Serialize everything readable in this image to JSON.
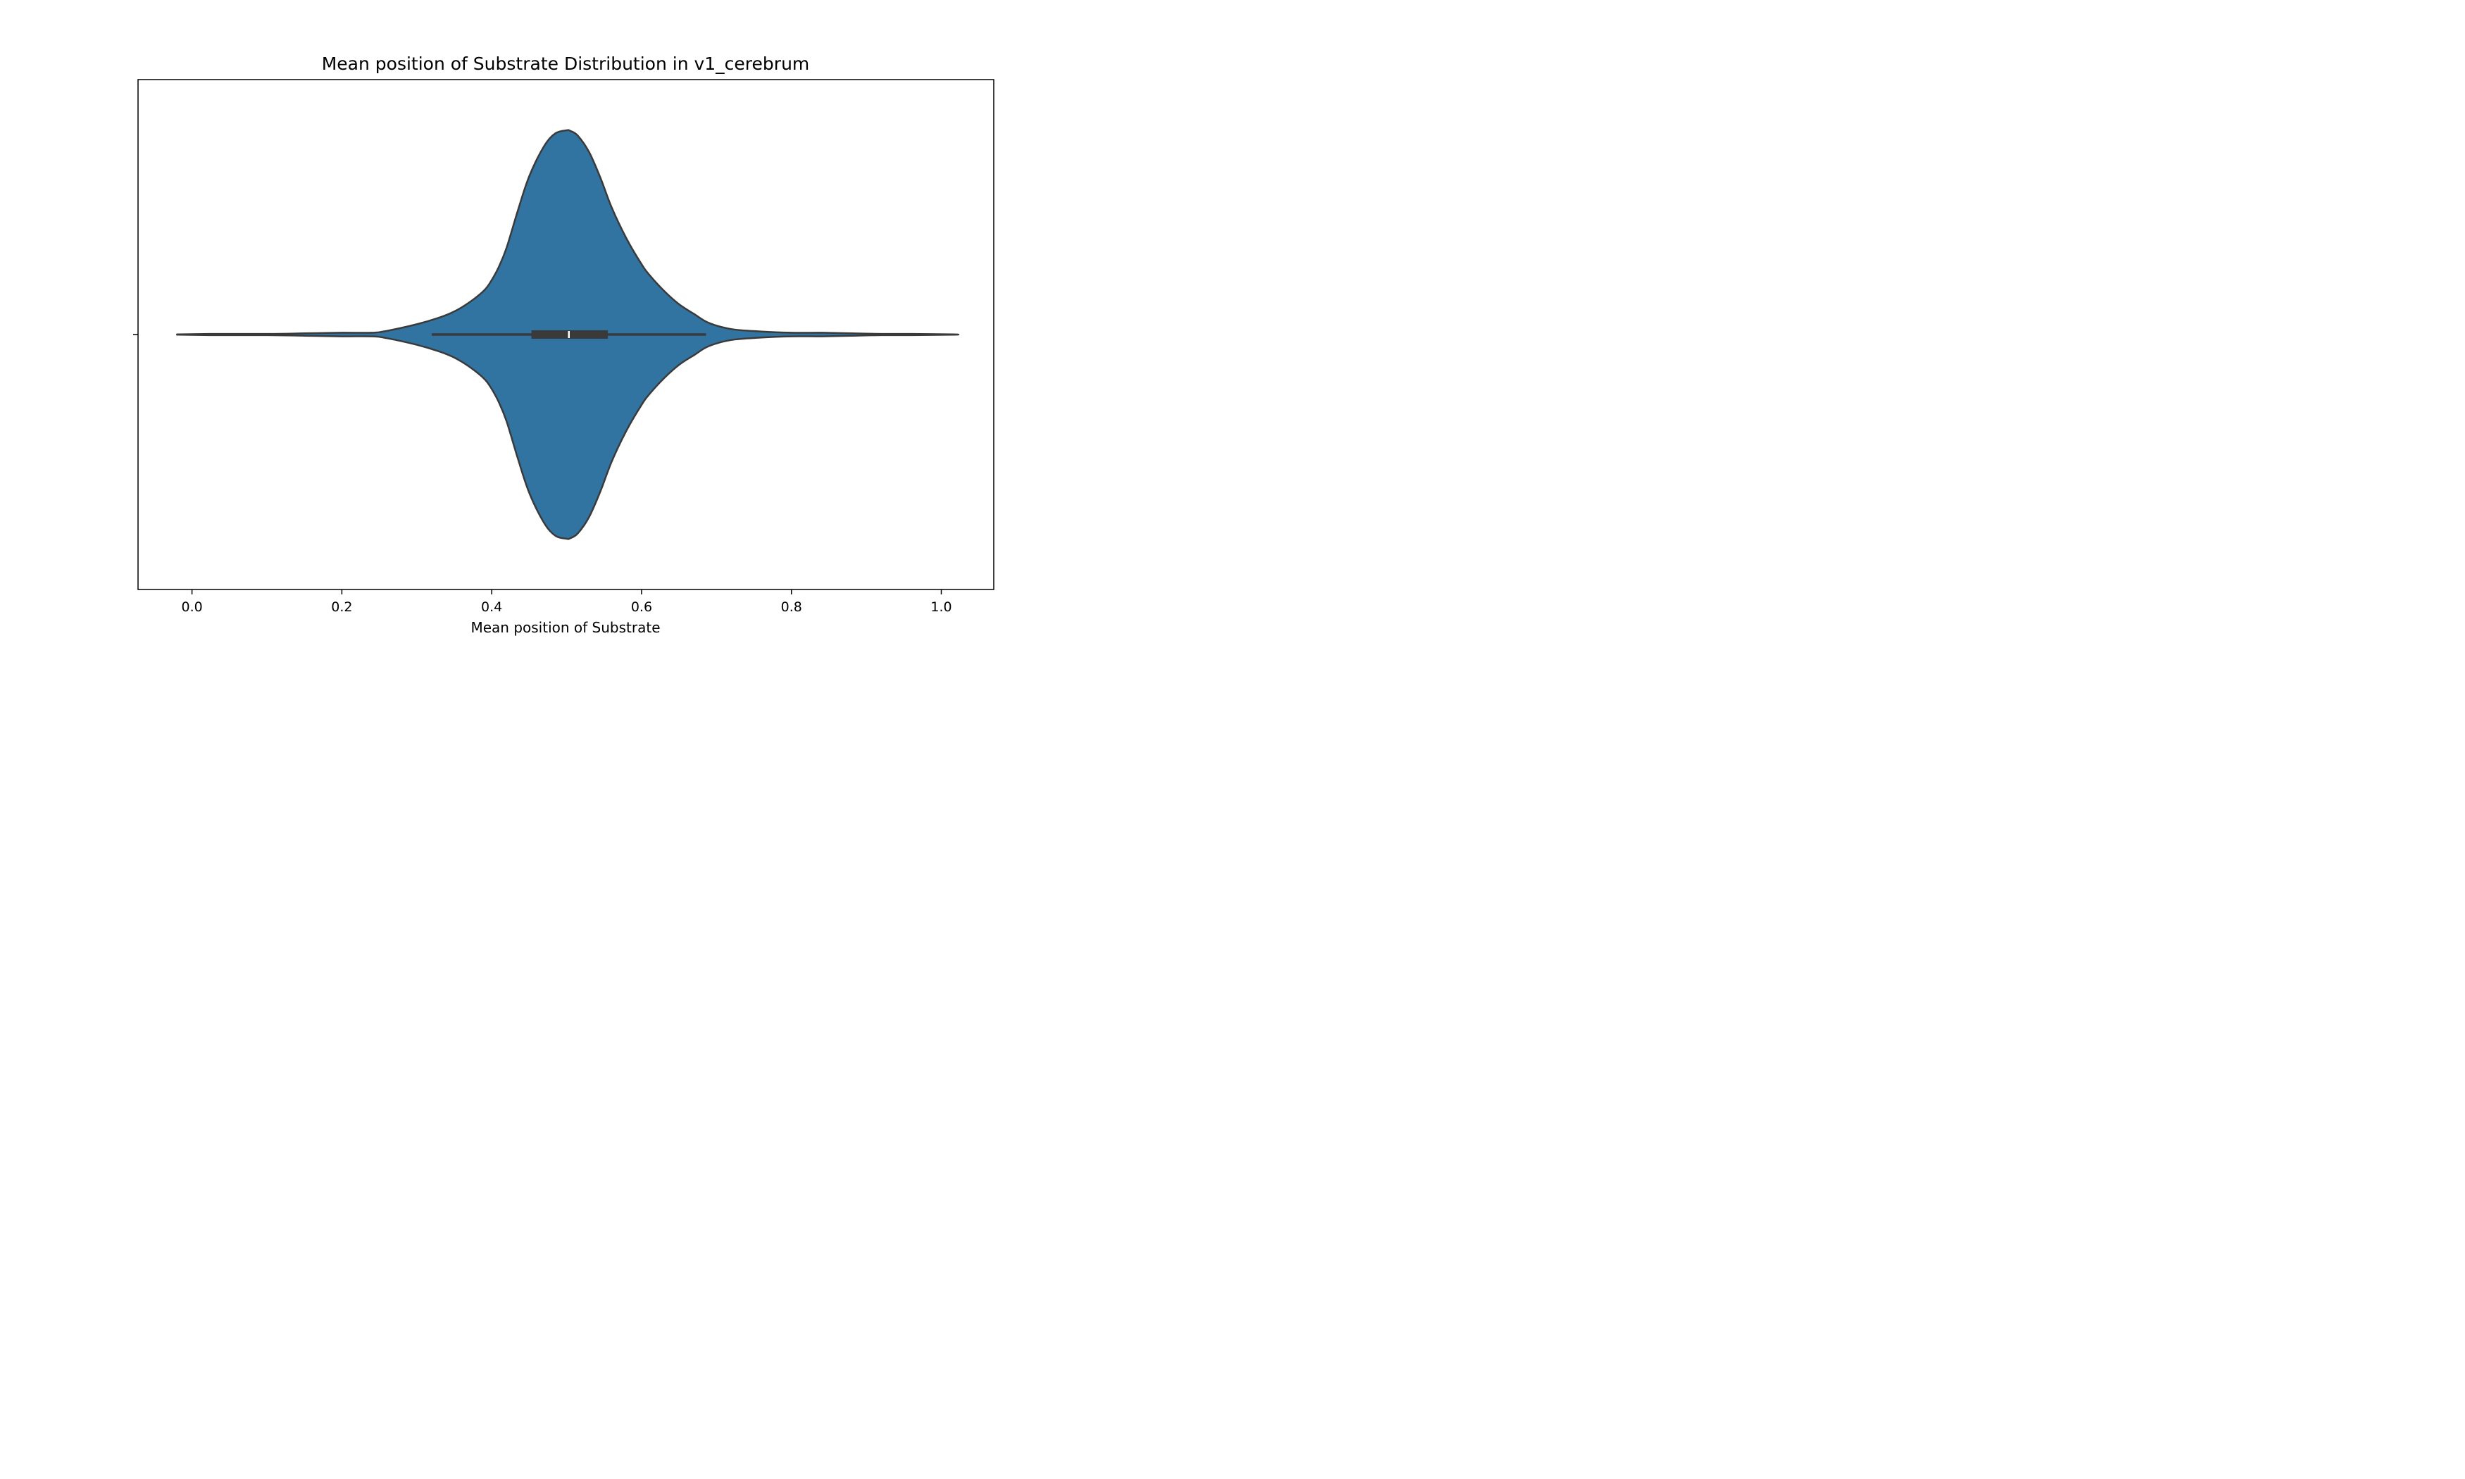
{
  "chart_data": {
    "type": "violin",
    "title": "Mean position of Substrate Distribution in v1_cerebrum",
    "xlabel": "Mean position of Substrate",
    "ylabel": "",
    "xlim": [
      -0.072,
      1.07
    ],
    "xticks": [
      0.0,
      0.2,
      0.4,
      0.6,
      0.8,
      1.0
    ],
    "xtick_labels": [
      "0.0",
      "0.2",
      "0.4",
      "0.6",
      "0.8",
      "1.0"
    ],
    "grid": false,
    "legend": "none",
    "fill_color": "#3274a1",
    "edge_color": "#3a3a3a",
    "density_profile": {
      "x": [
        -0.02,
        0.03,
        0.1,
        0.15,
        0.2,
        0.24,
        0.26,
        0.3,
        0.33,
        0.35,
        0.37,
        0.39,
        0.4,
        0.41,
        0.42,
        0.435,
        0.45,
        0.47,
        0.485,
        0.5,
        0.505,
        0.515,
        0.53,
        0.545,
        0.56,
        0.58,
        0.6,
        0.61,
        0.63,
        0.65,
        0.67,
        0.69,
        0.72,
        0.76,
        0.8,
        0.84,
        0.88,
        0.92,
        0.96,
        1.016
      ],
      "density": [
        0.002,
        0.01,
        0.01,
        0.02,
        0.03,
        0.03,
        0.06,
        0.17,
        0.28,
        0.38,
        0.53,
        0.73,
        0.9,
        1.13,
        1.44,
        2.05,
        2.61,
        3.11,
        3.32,
        3.37,
        3.36,
        3.28,
        3.01,
        2.59,
        2.1,
        1.58,
        1.16,
        0.99,
        0.72,
        0.5,
        0.34,
        0.19,
        0.09,
        0.05,
        0.03,
        0.03,
        0.02,
        0.01,
        0.01,
        0.002
      ]
    },
    "box": {
      "q1": 0.453,
      "median": 0.503,
      "q3": 0.555,
      "whisker_low": 0.32,
      "whisker_high": 0.686
    }
  }
}
